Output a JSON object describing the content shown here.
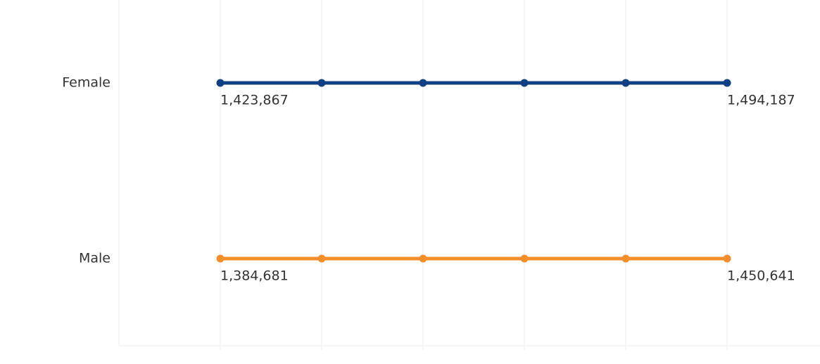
{
  "chart_data": {
    "type": "dotline",
    "categories": [
      null,
      null,
      null,
      null,
      null,
      null
    ],
    "series": [
      {
        "name": "Female",
        "color": "#0e4083",
        "values": [
          1423867,
          null,
          null,
          null,
          null,
          1494187
        ],
        "value_labels": [
          "1,423,867",
          null,
          null,
          null,
          null,
          "1,494,187"
        ]
      },
      {
        "name": "Male",
        "color": "#f28e2b",
        "values": [
          1384681,
          null,
          null,
          null,
          null,
          1450641
        ],
        "value_labels": [
          "1,384,681",
          null,
          null,
          null,
          null,
          "1,450,641"
        ]
      }
    ],
    "grid": true
  }
}
